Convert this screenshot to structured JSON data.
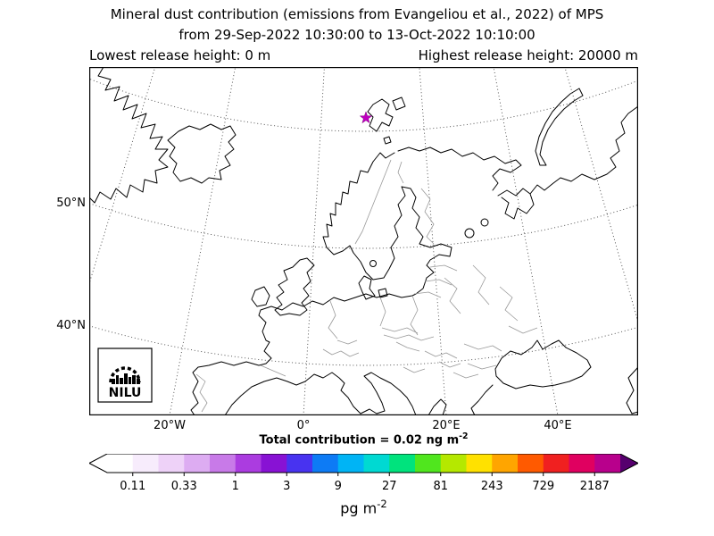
{
  "title": {
    "line1": "Mineral dust contribution (emissions from Evangeliou et al., 2022) of MPS",
    "line2": "from 29-Sep-2022 10:30:00 to 13-Oct-2022 10:10:00",
    "lowest_release": "Lowest release height: 0 m",
    "highest_release": "Highest release height: 20000 m"
  },
  "map": {
    "lat_labels": [
      "50°N",
      "40°N"
    ],
    "lon_labels": [
      "20°W",
      "0°",
      "20°E",
      "40°E"
    ],
    "logo_text": "NILU",
    "marker_color": "#bf00bf"
  },
  "annotation": {
    "text": "Total contribution = 0.02 ng m",
    "exponent": "-2"
  },
  "colorbar": {
    "tick_labels": [
      "0.11",
      "0.33",
      "1",
      "3",
      "9",
      "27",
      "81",
      "243",
      "729",
      "2187"
    ],
    "unit": "pg m",
    "unit_exponent": "-2",
    "left_arrow_color": "#ffffff",
    "right_arrow_color": "#56006e",
    "segment_colors": [
      "#ffffff",
      "#f7ecfc",
      "#eed2f8",
      "#ddacf2",
      "#c87ae8",
      "#ab3ce0",
      "#8812d4",
      "#4833f0",
      "#0d7bf5",
      "#00b4f5",
      "#00d9d2",
      "#00e37d",
      "#50e61e",
      "#b5e800",
      "#ffe100",
      "#ffa500",
      "#ff5a00",
      "#f02020",
      "#e00060",
      "#b8008c"
    ]
  }
}
